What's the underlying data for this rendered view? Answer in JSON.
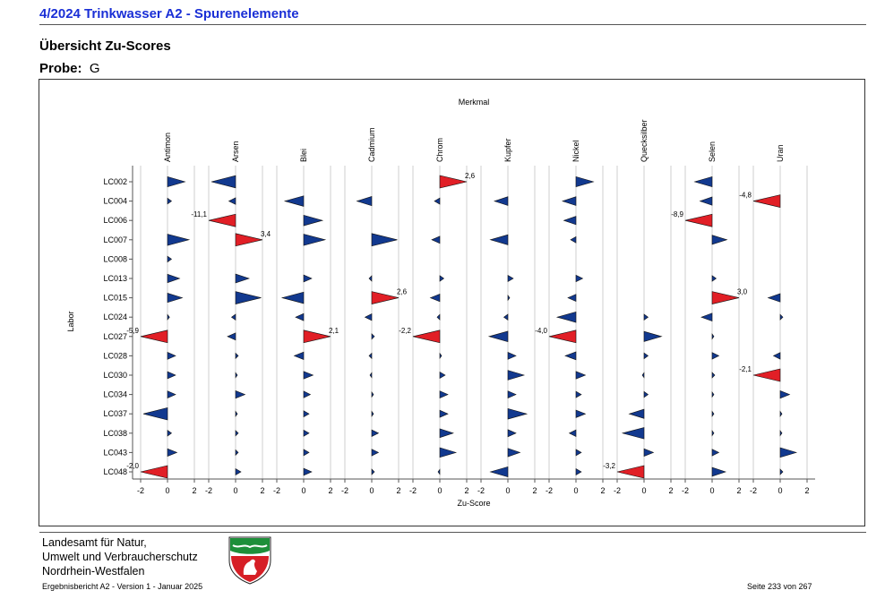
{
  "header": {
    "title": "4/2024 Trinkwasser A2 - Spurenelemente",
    "subtitle": "Übersicht  Zu-Scores",
    "probe_label": "Probe:",
    "probe_value": "G"
  },
  "chart_data": {
    "type": "bar",
    "title": "Merkmal",
    "xlabel": "Zu-Score",
    "ylabel": "Labor",
    "xlim": [
      -3,
      3
    ],
    "xticks": [
      -2,
      0,
      2
    ],
    "labs": [
      "LC002",
      "LC004",
      "LC006",
      "LC007",
      "LC008",
      "LC013",
      "LC015",
      "LC024",
      "LC027",
      "LC028",
      "LC030",
      "LC034",
      "LC037",
      "LC038",
      "LC043",
      "LC048"
    ],
    "series": [
      {
        "name": "Antimon",
        "values": [
          1.3,
          0.3,
          null,
          1.6,
          0.3,
          0.9,
          1.1,
          0.15,
          -5.9,
          0.6,
          0.6,
          0.6,
          -1.8,
          0.3,
          0.7,
          -2.0
        ]
      },
      {
        "name": "Arsen",
        "values": [
          -1.8,
          -0.5,
          -11.1,
          3.4,
          null,
          1.0,
          1.9,
          -0.3,
          -0.6,
          0.2,
          0.1,
          0.7,
          0.1,
          0.2,
          0.2,
          0.4
        ]
      },
      {
        "name": "Blei",
        "values": [
          null,
          -1.4,
          1.4,
          1.6,
          null,
          0.6,
          -1.6,
          -0.6,
          2.1,
          -0.7,
          0.7,
          0.5,
          0.4,
          0.4,
          0.4,
          0.6
        ]
      },
      {
        "name": "Cadmium",
        "values": [
          null,
          -1.1,
          null,
          1.9,
          null,
          -0.2,
          2.6,
          -0.5,
          0.2,
          -0.2,
          -0.1,
          0.1,
          0.1,
          0.5,
          0.5,
          0.2
        ]
      },
      {
        "name": "Chrom",
        "values": [
          2.6,
          -0.4,
          null,
          -0.6,
          null,
          0.3,
          -0.7,
          -0.2,
          -2.2,
          0.1,
          0.4,
          0.6,
          0.6,
          1.0,
          1.2,
          -0.1
        ]
      },
      {
        "name": "Kupfer",
        "values": [
          null,
          -1.0,
          null,
          -1.3,
          null,
          0.4,
          0.1,
          -0.3,
          -1.4,
          0.6,
          1.2,
          0.6,
          1.4,
          0.6,
          0.9,
          -1.3
        ]
      },
      {
        "name": "Nickel",
        "values": [
          1.3,
          -1.0,
          -0.9,
          -0.4,
          null,
          0.5,
          -0.6,
          -1.4,
          -4.0,
          -0.8,
          0.7,
          0.4,
          0.7,
          -0.5,
          0.4,
          0.4
        ]
      },
      {
        "name": "Quecksilber",
        "values": [
          null,
          null,
          null,
          null,
          null,
          null,
          null,
          0.3,
          1.3,
          0.3,
          -0.1,
          0.3,
          -1.1,
          -1.6,
          0.7,
          -3.2
        ]
      },
      {
        "name": "Selen",
        "values": [
          -1.3,
          -0.9,
          -8.9,
          1.1,
          null,
          0.3,
          3.0,
          -0.8,
          0.1,
          0.5,
          0.2,
          0.1,
          0.1,
          0.1,
          0.5,
          1.0
        ]
      },
      {
        "name": "Uran",
        "values": [
          null,
          -4.8,
          null,
          null,
          null,
          null,
          -0.9,
          0.2,
          null,
          -0.5,
          -2.1,
          0.7,
          0.1,
          0.1,
          1.2,
          0.2
        ]
      }
    ],
    "legend": "none",
    "grid": true,
    "highlight_color": "#e11f26",
    "normal_color": "#12398f"
  },
  "footer": {
    "org_line1": "Landesamt für Natur,",
    "org_line2": "Umwelt und Verbraucherschutz",
    "org_line3": "Nordrhein-Westfalen",
    "version": "Ergebnisbericht A2 - Version 1 - Januar 2025",
    "page": "Seite 233 von 267"
  }
}
